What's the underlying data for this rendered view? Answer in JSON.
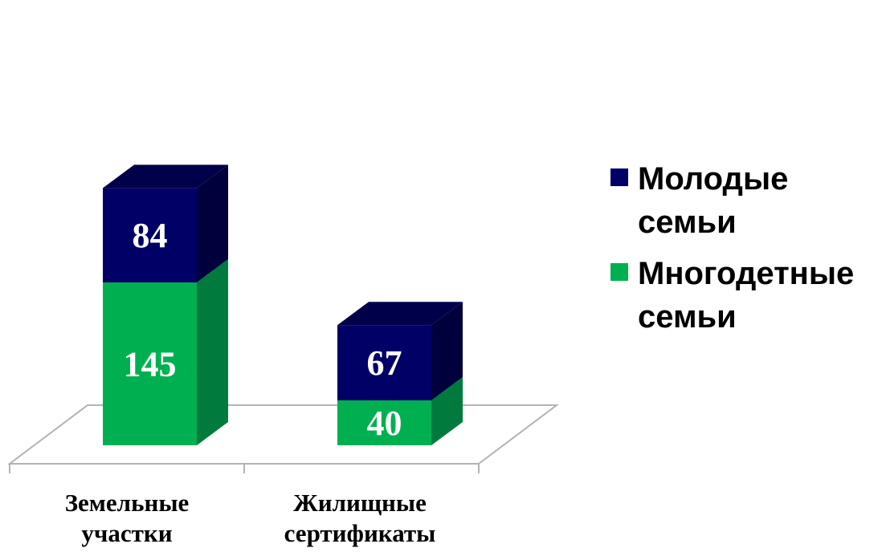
{
  "chart_data": {
    "type": "bar",
    "stacked": true,
    "three_d": true,
    "categories": [
      "Земельные участки",
      "Жилищные сертификаты"
    ],
    "series": [
      {
        "name": "Многодетные семьи",
        "values": [
          145,
          40
        ],
        "color": "#00B050",
        "side_color": "#007A3D",
        "top_color": "#00B050"
      },
      {
        "name": "Молодые семьи",
        "values": [
          84,
          67
        ],
        "color": "#000066",
        "side_color": "#00003C",
        "top_color": "#00004A"
      }
    ],
    "legend_position": "right",
    "legend_order": [
      "Молодые семьи",
      "Многодетные семьи"
    ],
    "data_label_color": "#FFFFFF",
    "grid": false,
    "title": "",
    "xlabel": "",
    "ylabel": ""
  }
}
